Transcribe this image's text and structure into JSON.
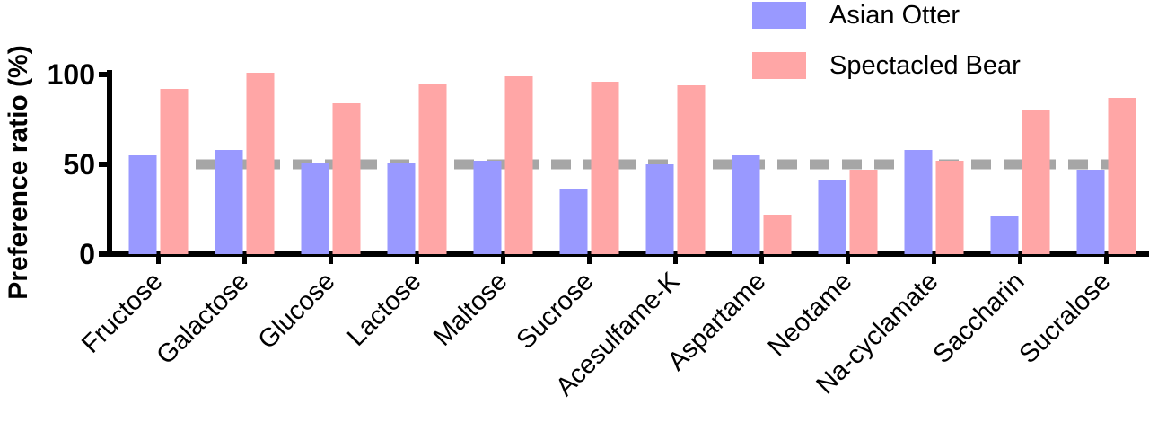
{
  "chart_data": {
    "type": "bar",
    "ylabel": "Preference ratio (%)",
    "xlabel": "",
    "ylim": [
      0,
      100
    ],
    "yticks": [
      0,
      50,
      100
    ],
    "reference_line": 50,
    "categories": [
      "Fructose",
      "Galactose",
      "Glucose",
      "Lactose",
      "Maltose",
      "Sucrose",
      "Acesulfame-K",
      "Aspartame",
      "Neotame",
      "Na-cyclamate",
      "Saccharin",
      "Sucralose"
    ],
    "series": [
      {
        "name": "Asian Otter",
        "color": "#9999ff",
        "values": [
          55,
          58,
          51,
          51,
          52,
          36,
          50,
          55,
          41,
          58,
          21,
          47
        ]
      },
      {
        "name": "Spectacled Bear",
        "color": "#ffa6a6",
        "values": [
          92,
          101,
          84,
          95,
          99,
          96,
          94,
          22,
          47,
          52,
          80,
          87
        ]
      }
    ],
    "legend_position": "top-right",
    "grid": false,
    "reference_line_color": "#a6a6a6"
  }
}
